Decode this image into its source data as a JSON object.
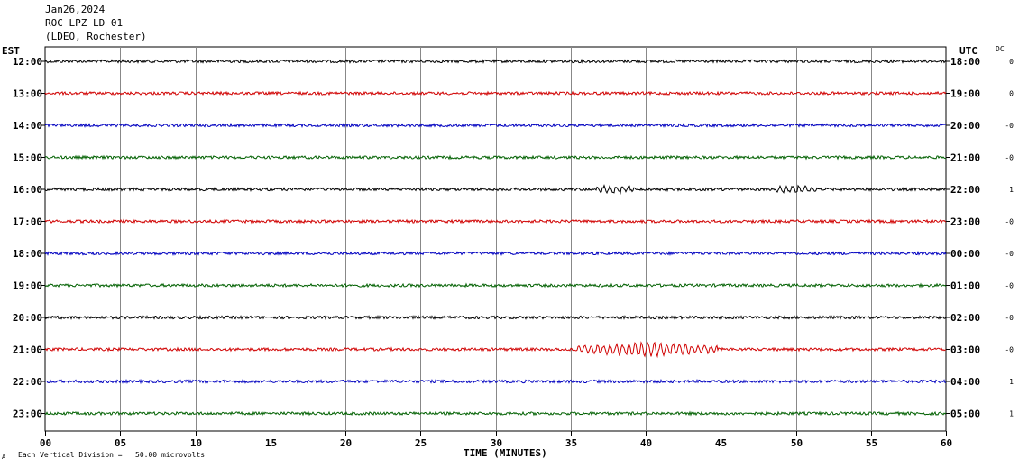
{
  "header": {
    "date": "Jan26,2024",
    "station": "ROC LPZ LD 01",
    "network": "(LDEO, Rochester)"
  },
  "timezones": {
    "left": "EST",
    "right": "UTC",
    "dc_label": "DC"
  },
  "footer": {
    "mark": "A",
    "division_text": "Each Vertical Division =   50.00 microvolts"
  },
  "colors": {
    "trace_cycle": [
      "#000000",
      "#d00000",
      "#0000c0",
      "#006000"
    ],
    "grid": "#888888"
  },
  "chart_data": {
    "type": "line",
    "title": "",
    "xlabel": "TIME (MINUTES)",
    "ylabel": "",
    "xlim": [
      0,
      60
    ],
    "x_ticks": [
      "00",
      "05",
      "10",
      "15",
      "20",
      "25",
      "30",
      "35",
      "40",
      "45",
      "50",
      "55",
      "60"
    ],
    "grid": true,
    "rows": [
      {
        "est": "12:00",
        "utc": "18:00",
        "dc": "0"
      },
      {
        "est": "13:00",
        "utc": "19:00",
        "dc": "0"
      },
      {
        "est": "14:00",
        "utc": "20:00",
        "dc": "-0"
      },
      {
        "est": "15:00",
        "utc": "21:00",
        "dc": "-0"
      },
      {
        "est": "16:00",
        "utc": "22:00",
        "dc": "1"
      },
      {
        "est": "17:00",
        "utc": "23:00",
        "dc": "-0"
      },
      {
        "est": "18:00",
        "utc": "00:00",
        "dc": "-0"
      },
      {
        "est": "19:00",
        "utc": "01:00",
        "dc": "-0"
      },
      {
        "est": "20:00",
        "utc": "02:00",
        "dc": "-0"
      },
      {
        "est": "21:00",
        "utc": "03:00",
        "dc": "-0"
      },
      {
        "est": "22:00",
        "utc": "04:00",
        "dc": "1"
      },
      {
        "est": "23:00",
        "utc": "05:00",
        "dc": "1"
      }
    ],
    "events": [
      {
        "row": 4,
        "start_min": 37.5,
        "end_min": 38.5,
        "amplitude": "moderate"
      },
      {
        "row": 4,
        "start_min": 49.5,
        "end_min": 50.5,
        "amplitude": "moderate"
      },
      {
        "row": 9,
        "start_min": 36,
        "end_min": 44,
        "amplitude": "large"
      }
    ]
  }
}
